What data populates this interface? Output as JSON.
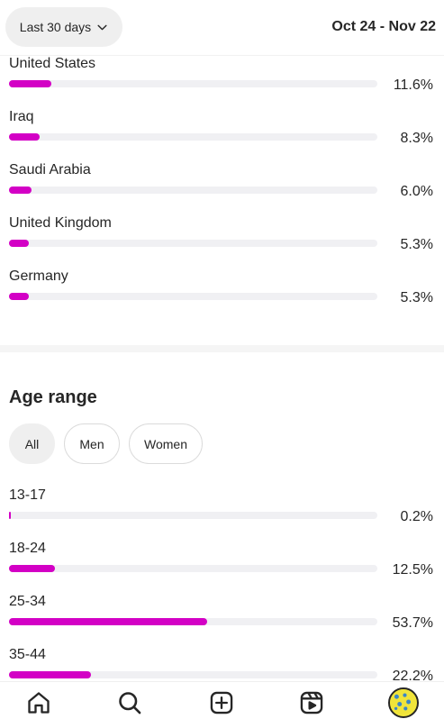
{
  "header": {
    "range_label": "Last 30 days",
    "date_range": "Oct 24 - Nov 22"
  },
  "countries": [
    {
      "label": "United States",
      "percent": "11.6%",
      "value": 11.6
    },
    {
      "label": "Iraq",
      "percent": "8.3%",
      "value": 8.3
    },
    {
      "label": "Saudi Arabia",
      "percent": "6.0%",
      "value": 6.0
    },
    {
      "label": "United Kingdom",
      "percent": "5.3%",
      "value": 5.3
    },
    {
      "label": "Germany",
      "percent": "5.3%",
      "value": 5.3
    }
  ],
  "age_section": {
    "title": "Age range",
    "filters": [
      "All",
      "Men",
      "Women"
    ],
    "selected_filter": "All",
    "rows": [
      {
        "label": "13-17",
        "percent": "0.2%",
        "value": 0.2
      },
      {
        "label": "18-24",
        "percent": "12.5%",
        "value": 12.5
      },
      {
        "label": "25-34",
        "percent": "53.7%",
        "value": 53.7
      },
      {
        "label": "35-44",
        "percent": "22.2%",
        "value": 22.2
      }
    ]
  },
  "colors": {
    "bar_fill": "#d300c5",
    "bar_track": "#f0f0f3",
    "text": "#262626"
  },
  "bottom_nav": {
    "icons": [
      "home-icon",
      "search-icon",
      "create-icon",
      "reels-icon",
      "profile-avatar"
    ]
  }
}
